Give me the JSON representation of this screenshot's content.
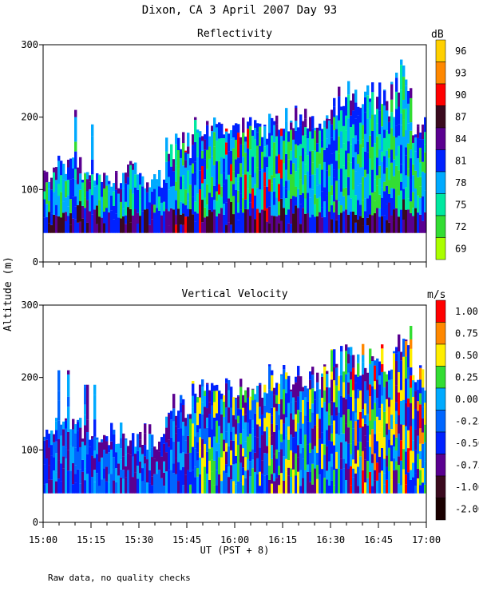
{
  "title": "Dixon, CA   3 April 2007   Day  93",
  "ylabel": "Altitude  (m)",
  "xlabel": "UT  (PST + 8)",
  "footer": "Raw data, no quality checks",
  "x_tick_labels": [
    "15:00",
    "15:15",
    "15:30",
    "15:45",
    "16:00",
    "16:15",
    "16:30",
    "16:45",
    "17:00"
  ],
  "chart_data": [
    {
      "type": "heatmap",
      "title": "Reflectivity",
      "xlabel": "UT  (PST + 8)",
      "ylabel": "Altitude  (m)",
      "xlim": [
        "15:00",
        "17:00"
      ],
      "ylim": [
        0,
        300
      ],
      "y_ticks": [
        0,
        100,
        200,
        300
      ],
      "colorbar": {
        "unit": "dB",
        "ticks": [
          "96",
          "93",
          "90",
          "87",
          "84",
          "81",
          "78",
          "75",
          "72",
          "69"
        ],
        "colors": [
          "#ffd000",
          "#ff8800",
          "#ff0000",
          "#3a0a1e",
          "#5a0090",
          "#0022ff",
          "#00aaff",
          "#00e8a0",
          "#33dd33",
          "#aaff00"
        ]
      },
      "annotation": "Echo base ~40 m; tops mostly 100-200 m, reaching ~280 m near 16:52"
    },
    {
      "type": "heatmap",
      "title": "Vertical Velocity",
      "xlabel": "UT  (PST + 8)",
      "ylabel": "Altitude  (m)",
      "xlim": [
        "15:00",
        "17:00"
      ],
      "ylim": [
        0,
        300
      ],
      "y_ticks": [
        0,
        100,
        200,
        300
      ],
      "colorbar": {
        "unit": "m/s",
        "ticks": [
          "1.00",
          "0.75",
          "0.50",
          "0.25",
          "0.00",
          "-0.25",
          "-0.50",
          "-0.75",
          "-1.00",
          "-2.00"
        ],
        "colors": [
          "#ff0000",
          "#ff8800",
          "#ffee00",
          "#33dd33",
          "#00aaff",
          "#0066ff",
          "#0022ff",
          "#5a0090",
          "#3a0a1e",
          "#1a0000"
        ]
      },
      "annotation": "Same echo region; strong updrafts (yellow/red) after 16:30"
    }
  ]
}
